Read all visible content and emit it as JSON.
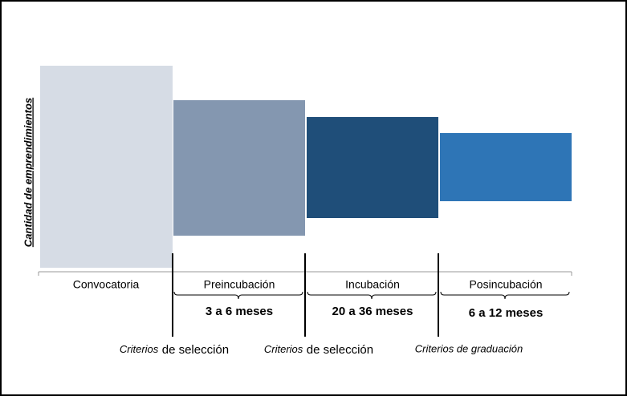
{
  "axis_label": "Cantidad de emprendimientos",
  "stages": [
    {
      "label": "Convocatoria"
    },
    {
      "label": "Preincubación",
      "duration": "3 a 6 meses"
    },
    {
      "label": "Incubación",
      "duration": "20 a 36 meses"
    },
    {
      "label": "Posincubación",
      "duration": "6 a 12 meses"
    }
  ],
  "criteria": [
    {
      "lead": "Criterios",
      "emphasis": "de selección"
    },
    {
      "lead": "Criterios",
      "emphasis": "de selección"
    },
    {
      "lead": "Criterios de graduación"
    }
  ]
}
